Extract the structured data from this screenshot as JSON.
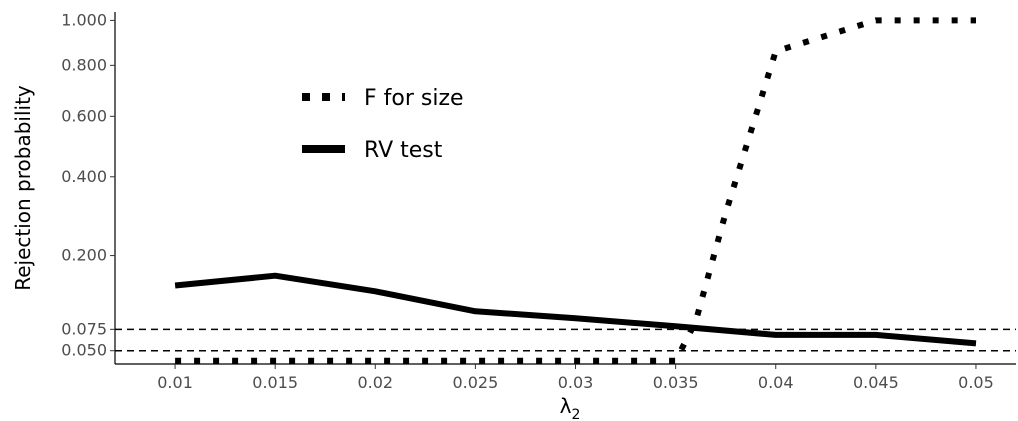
{
  "chart_data": {
    "type": "line",
    "title": "",
    "xlabel": "λ",
    "xlabel_subscript": "2",
    "ylabel": "Rejection probability",
    "x": [
      0.01,
      0.015,
      0.02,
      0.025,
      0.03,
      0.035,
      0.036,
      0.04,
      0.045,
      0.05
    ],
    "x_ticks": [
      0.01,
      0.015,
      0.02,
      0.025,
      0.03,
      0.035,
      0.04,
      0.045,
      0.05
    ],
    "x_tick_labels": [
      "0.01",
      "0.015",
      "0.02",
      "0.025",
      "0.03",
      "0.035",
      "0.04",
      "0.045",
      "0.05"
    ],
    "xlim": [
      0.007,
      0.052
    ],
    "y_scale": "sqrt",
    "y_ticks": [
      0.05,
      0.075,
      0.2,
      0.4,
      0.6,
      0.8,
      1.0
    ],
    "y_tick_labels": [
      "0.050",
      "0.075",
      "0.200",
      "0.400",
      "0.600",
      "0.800",
      "1.000"
    ],
    "ylim": [
      0.037,
      1.04
    ],
    "reference_lines": [
      0.05,
      0.075
    ],
    "grid": false,
    "legend_position": "top-left",
    "series": [
      {
        "name": "F for size",
        "style": "dotted",
        "x": [
          0.01,
          0.015,
          0.02,
          0.025,
          0.03,
          0.035,
          0.036,
          0.0375,
          0.04,
          0.045,
          0.05
        ],
        "values": [
          0.04,
          0.04,
          0.04,
          0.04,
          0.04,
          0.04,
          0.085,
          0.3,
          0.86,
          1.0,
          1.0
        ]
      },
      {
        "name": "RV test",
        "style": "solid",
        "x": [
          0.01,
          0.015,
          0.02,
          0.025,
          0.03,
          0.035,
          0.04,
          0.045,
          0.05
        ],
        "values": [
          0.142,
          0.16,
          0.132,
          0.1,
          0.09,
          0.079,
          0.068,
          0.068,
          0.058
        ]
      }
    ]
  }
}
